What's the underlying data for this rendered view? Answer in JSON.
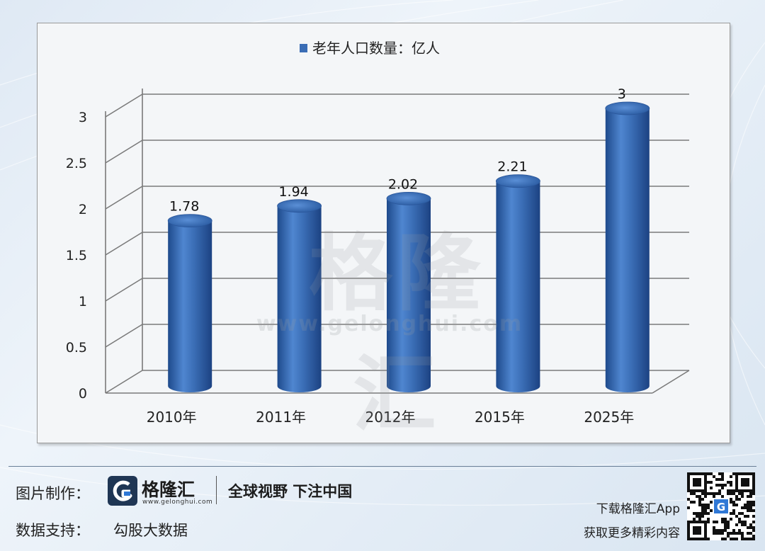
{
  "chart_data": {
    "type": "bar",
    "categories": [
      "2010年",
      "2011年",
      "2012年",
      "2015年",
      "2025年"
    ],
    "series": [
      {
        "name": "老年人口数量：亿人",
        "values": [
          1.78,
          1.94,
          2.02,
          2.21,
          3
        ]
      }
    ],
    "data_labels": [
      "1.78",
      "1.94",
      "2.02",
      "2.21",
      "3"
    ],
    "y_ticks": [
      "0",
      "0.5",
      "1",
      "1.5",
      "2",
      "2.5",
      "3"
    ],
    "ylim": [
      0,
      3
    ],
    "grid": true,
    "legend_position": "top-center",
    "bar_style": "3d-cylinder",
    "bar_color": "#3a6db5"
  },
  "watermark": {
    "text": "格隆汇",
    "url": "www.gelonghui.com"
  },
  "footer": {
    "credit_label": "图片制作：",
    "brand_name": "格隆汇",
    "brand_url": "www.gelonghui.com",
    "slogan": "全球视野 下注中国",
    "data_label": "数据支持：",
    "data_source": "勾股大数据",
    "app_download": "下载格隆汇App",
    "app_promo": "获取更多精彩内容",
    "qr_icon": "qr-code-icon",
    "logo_icon": "gelonghui-logo-icon"
  },
  "colors": {
    "brand_dark": "#1f3654",
    "brand_blue": "#2f78d6"
  }
}
